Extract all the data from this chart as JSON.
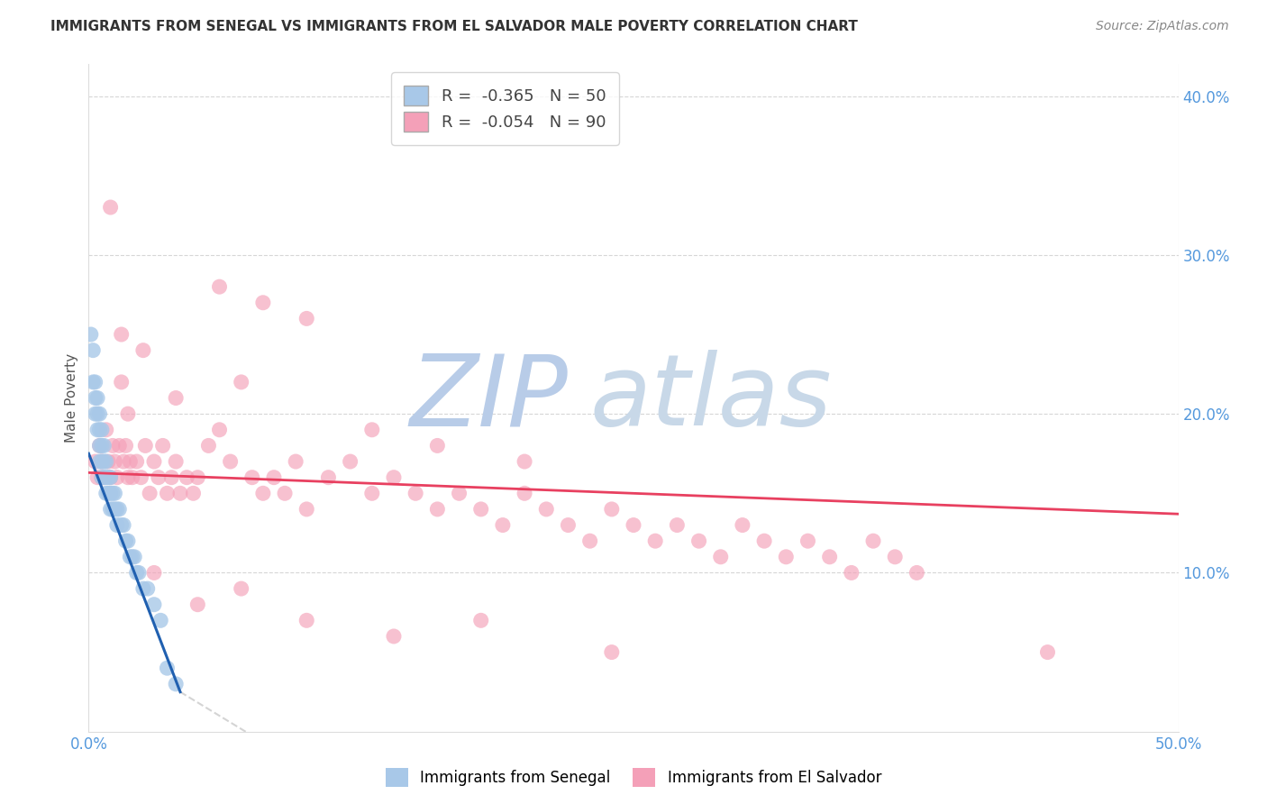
{
  "title": "IMMIGRANTS FROM SENEGAL VS IMMIGRANTS FROM EL SALVADOR MALE POVERTY CORRELATION CHART",
  "source": "Source: ZipAtlas.com",
  "ylabel": "Male Poverty",
  "r_senegal": -0.365,
  "n_senegal": 50,
  "r_elsalvador": -0.054,
  "n_elsalvador": 90,
  "xlim": [
    0.0,
    0.5
  ],
  "ylim": [
    0.0,
    0.42
  ],
  "yticks": [
    0.1,
    0.2,
    0.3,
    0.4
  ],
  "ytick_labels": [
    "10.0%",
    "20.0%",
    "30.0%",
    "40.0%"
  ],
  "color_senegal": "#a8c8e8",
  "color_elsalvador": "#f4a0b8",
  "line_color_senegal": "#2060b0",
  "line_color_elsalvador": "#e84060",
  "background_color": "#ffffff",
  "watermark_zip": "ZIP",
  "watermark_atlas": "atlas",
  "watermark_color_zip": "#b8cce8",
  "watermark_color_atlas": "#c8d8e8",
  "senegal_x": [
    0.001,
    0.002,
    0.002,
    0.003,
    0.003,
    0.003,
    0.004,
    0.004,
    0.004,
    0.005,
    0.005,
    0.005,
    0.005,
    0.006,
    0.006,
    0.006,
    0.006,
    0.007,
    0.007,
    0.007,
    0.008,
    0.008,
    0.008,
    0.009,
    0.009,
    0.01,
    0.01,
    0.01,
    0.011,
    0.011,
    0.012,
    0.012,
    0.013,
    0.013,
    0.014,
    0.015,
    0.016,
    0.017,
    0.018,
    0.019,
    0.02,
    0.021,
    0.022,
    0.023,
    0.025,
    0.027,
    0.03,
    0.033,
    0.036,
    0.04
  ],
  "senegal_y": [
    0.25,
    0.24,
    0.22,
    0.22,
    0.21,
    0.2,
    0.2,
    0.19,
    0.21,
    0.2,
    0.19,
    0.18,
    0.17,
    0.19,
    0.18,
    0.17,
    0.16,
    0.18,
    0.17,
    0.16,
    0.17,
    0.16,
    0.15,
    0.16,
    0.15,
    0.16,
    0.15,
    0.14,
    0.15,
    0.14,
    0.15,
    0.14,
    0.14,
    0.13,
    0.14,
    0.13,
    0.13,
    0.12,
    0.12,
    0.11,
    0.11,
    0.11,
    0.1,
    0.1,
    0.09,
    0.09,
    0.08,
    0.07,
    0.04,
    0.03
  ],
  "elsalvador_x": [
    0.003,
    0.004,
    0.005,
    0.006,
    0.007,
    0.008,
    0.009,
    0.01,
    0.011,
    0.012,
    0.013,
    0.014,
    0.015,
    0.016,
    0.017,
    0.018,
    0.019,
    0.02,
    0.022,
    0.024,
    0.026,
    0.028,
    0.03,
    0.032,
    0.034,
    0.036,
    0.038,
    0.04,
    0.042,
    0.045,
    0.048,
    0.05,
    0.055,
    0.06,
    0.065,
    0.07,
    0.075,
    0.08,
    0.085,
    0.09,
    0.095,
    0.1,
    0.11,
    0.12,
    0.13,
    0.14,
    0.15,
    0.16,
    0.17,
    0.18,
    0.19,
    0.2,
    0.21,
    0.22,
    0.23,
    0.24,
    0.25,
    0.26,
    0.27,
    0.28,
    0.29,
    0.3,
    0.31,
    0.32,
    0.33,
    0.34,
    0.35,
    0.36,
    0.37,
    0.38,
    0.015,
    0.025,
    0.04,
    0.06,
    0.08,
    0.1,
    0.13,
    0.16,
    0.2,
    0.24,
    0.006,
    0.01,
    0.018,
    0.03,
    0.05,
    0.07,
    0.1,
    0.14,
    0.18,
    0.44
  ],
  "elsalvador_y": [
    0.17,
    0.16,
    0.18,
    0.17,
    0.16,
    0.19,
    0.17,
    0.16,
    0.18,
    0.17,
    0.16,
    0.18,
    0.22,
    0.17,
    0.18,
    0.16,
    0.17,
    0.16,
    0.17,
    0.16,
    0.18,
    0.15,
    0.17,
    0.16,
    0.18,
    0.15,
    0.16,
    0.17,
    0.15,
    0.16,
    0.15,
    0.16,
    0.18,
    0.19,
    0.17,
    0.22,
    0.16,
    0.15,
    0.16,
    0.15,
    0.17,
    0.14,
    0.16,
    0.17,
    0.15,
    0.16,
    0.15,
    0.14,
    0.15,
    0.14,
    0.13,
    0.15,
    0.14,
    0.13,
    0.12,
    0.14,
    0.13,
    0.12,
    0.13,
    0.12,
    0.11,
    0.13,
    0.12,
    0.11,
    0.12,
    0.11,
    0.1,
    0.12,
    0.11,
    0.1,
    0.25,
    0.24,
    0.21,
    0.28,
    0.27,
    0.26,
    0.19,
    0.18,
    0.17,
    0.05,
    0.16,
    0.33,
    0.2,
    0.1,
    0.08,
    0.09,
    0.07,
    0.06,
    0.07,
    0.05
  ],
  "senegal_line_x": [
    0.0,
    0.042
  ],
  "senegal_line_y": [
    0.175,
    0.025
  ],
  "elsalvador_line_x": [
    0.0,
    0.5
  ],
  "elsalvador_line_y": [
    0.163,
    0.137
  ],
  "dashed_line_x": [
    0.042,
    0.18
  ],
  "dashed_line_y": [
    0.025,
    -0.09
  ]
}
